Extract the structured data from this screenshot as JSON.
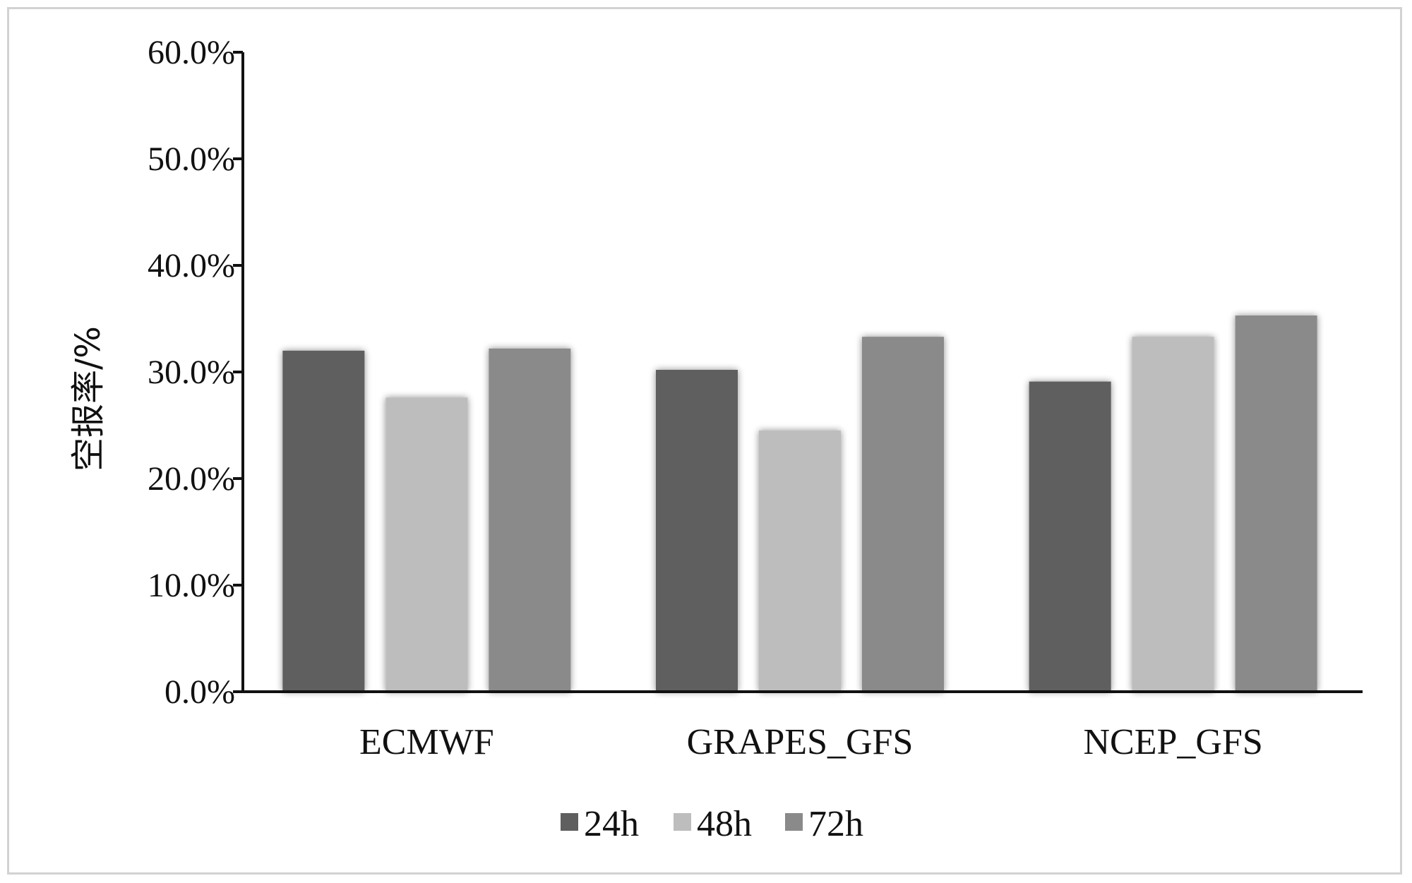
{
  "chart_data": {
    "type": "bar",
    "title": "",
    "xlabel": "",
    "ylabel": "空报率/%",
    "ylim": [
      0,
      60
    ],
    "ytick_values": [
      0,
      10,
      20,
      30,
      40,
      50,
      60
    ],
    "ytick_labels": [
      "0.0%",
      "10.0%",
      "20.0%",
      "30.0%",
      "40.0%",
      "50.0%",
      "60.0%"
    ],
    "categories": [
      "ECMWF",
      "GRAPES_GFS",
      "NCEP_GFS"
    ],
    "series": [
      {
        "name": "24h",
        "color": "#5f5f5f",
        "values": [
          32.0,
          30.2,
          29.1
        ]
      },
      {
        "name": "48h",
        "color": "#bdbdbd",
        "values": [
          27.6,
          24.5,
          33.3
        ]
      },
      {
        "name": "72h",
        "color": "#8a8a8a",
        "values": [
          32.2,
          33.3,
          35.3
        ]
      }
    ],
    "grid": false,
    "legend_position": "bottom-center"
  }
}
